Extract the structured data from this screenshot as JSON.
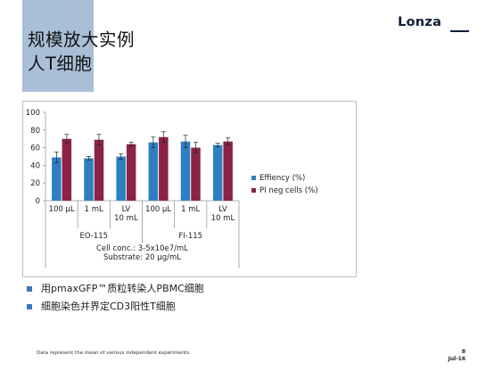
{
  "slide": {
    "title_line1": "规模放大实例",
    "title_line2": "人T细胞",
    "logo": "Lonza",
    "bullets": [
      "用pmaxGFP™质粒转染人PBMC细胞",
      "细胞染色并界定CD3阳性T细胞"
    ],
    "footnote": "Data represent the mean of various independent experiments.",
    "page_number": "8",
    "date": "Jul-16",
    "colors": {
      "accent_bar": "#a9bfd8",
      "bullet": "#3a78b9",
      "logo": "#0d1e3c"
    }
  },
  "chart_data": {
    "type": "bar",
    "categories": [
      "100 μL",
      "1 mL",
      "LV 10 mL",
      "100 μL",
      "1 mL",
      "LV 10 mL"
    ],
    "category_lines": [
      [
        "100 μL"
      ],
      [
        "1 mL"
      ],
      [
        "LV",
        "10 mL"
      ],
      [
        "100 μL"
      ],
      [
        "1 mL"
      ],
      [
        "LV",
        "10 mL"
      ]
    ],
    "groups": [
      {
        "label": "EO-115",
        "categories": [
          0,
          1,
          2
        ]
      },
      {
        "label": "FI-115",
        "categories": [
          3,
          4,
          5
        ]
      }
    ],
    "series": [
      {
        "name": "Effiency (%)",
        "color": "#2e7fc1",
        "values": [
          49,
          48,
          50,
          66,
          67,
          63
        ],
        "errors": [
          6,
          2,
          3,
          6,
          7,
          2
        ]
      },
      {
        "name": "PI neg cells (%)",
        "color": "#8a2346",
        "values": [
          70,
          69,
          64,
          72,
          60,
          67
        ],
        "errors": [
          5,
          6,
          2,
          6,
          6,
          4
        ]
      }
    ],
    "ylim": [
      0,
      100
    ],
    "yticks": [
      0,
      20,
      40,
      60,
      80,
      100
    ],
    "grid": false,
    "legend": "right",
    "annotations": [
      "Cell conc.: 3-5x10e7/mL",
      "Substrate: 20 μg/mL"
    ]
  }
}
